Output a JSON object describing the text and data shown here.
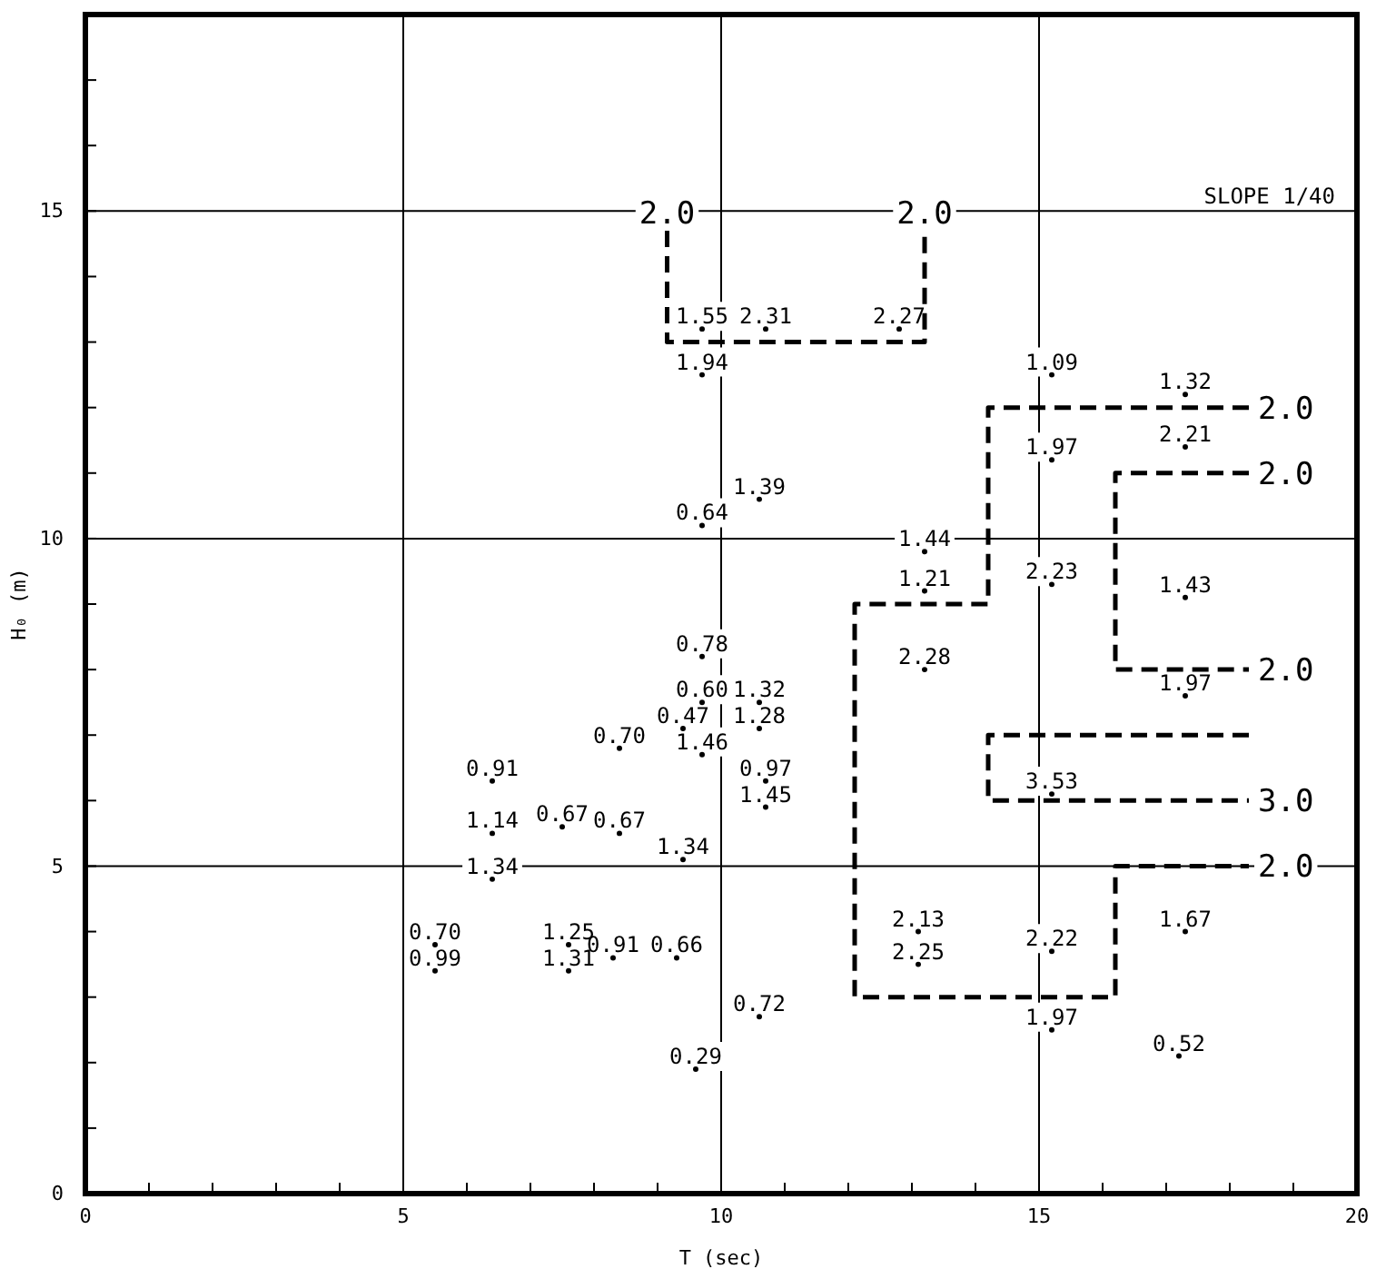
{
  "chart_data": {
    "type": "scatter",
    "xlabel": "T (sec)",
    "ylabel": "H₀ (m)",
    "xlim": [
      0,
      20
    ],
    "ylim": [
      0,
      18
    ],
    "xticks": [
      0,
      {
        "value": 1,
        "label": null
      },
      {
        "value": 2,
        "label": null
      },
      {
        "value": 3,
        "label": null
      },
      {
        "value": 4,
        "label": null
      },
      5,
      {
        "value": 6,
        "label": null
      },
      {
        "value": 7,
        "label": null
      },
      {
        "value": 8,
        "label": null
      },
      {
        "value": 9,
        "label": null
      },
      10,
      {
        "value": 11,
        "label": null
      },
      {
        "value": 12,
        "label": null
      },
      {
        "value": 13,
        "label": null
      },
      {
        "value": 14,
        "label": null
      },
      15,
      {
        "value": 16,
        "label": null
      },
      {
        "value": 17,
        "label": null
      },
      {
        "value": 18,
        "label": null
      },
      {
        "value": 19,
        "label": null
      },
      20
    ],
    "yticks": [
      0,
      {
        "value": 1,
        "label": null
      },
      {
        "value": 2,
        "label": null
      },
      {
        "value": 3,
        "label": null
      },
      {
        "value": 4,
        "label": null
      },
      5,
      {
        "value": 6,
        "label": null
      },
      {
        "value": 7,
        "label": null
      },
      {
        "value": 8,
        "label": null
      },
      {
        "value": 9,
        "label": null
      },
      10,
      {
        "value": 11,
        "label": null
      },
      {
        "value": 12,
        "label": null
      },
      {
        "value": 13,
        "label": null
      },
      {
        "value": 14,
        "label": null
      },
      15,
      {
        "value": 16,
        "label": null
      },
      {
        "value": 17,
        "label": null
      }
    ],
    "grid": true,
    "marker": "circle",
    "series": [
      {
        "color": "#000000",
        "x": [
          9.7,
          10.7,
          9.7,
          12.8,
          10.6,
          9.7,
          13.2,
          15.2,
          15.2,
          17.3,
          17.3,
          15.2,
          17.3,
          13.2,
          13.2,
          17.3,
          9.7,
          9.7,
          10.6,
          9.4,
          10.6,
          8.4,
          9.7,
          6.4,
          10.7,
          10.7,
          6.4,
          7.5,
          8.4,
          9.4,
          6.4,
          15.2,
          5.5,
          5.5,
          7.6,
          7.6,
          8.3,
          9.3,
          10.6,
          9.6,
          13.1,
          13.1,
          15.2,
          15.2,
          17.3,
          17.2
        ],
        "values": [
          13.2,
          13.2,
          12.5,
          13.2,
          10.6,
          10.2,
          9.8,
          12.5,
          11.2,
          12.2,
          11.4,
          9.3,
          9.1,
          9.2,
          8.0,
          7.6,
          8.2,
          7.5,
          7.5,
          7.1,
          7.1,
          6.8,
          6.7,
          6.3,
          6.3,
          5.9,
          5.5,
          5.6,
          5.5,
          5.1,
          4.8,
          6.1,
          3.8,
          3.4,
          3.8,
          3.4,
          3.6,
          3.6,
          2.7,
          1.9,
          4.0,
          3.5,
          3.7,
          2.5,
          4.0,
          2.1
        ]
      },
      {
        "type": "line",
        "color": "#000000",
        "line_style": "dashed",
        "marker": "none",
        "x": [
          9.15,
          9.15,
          13.2,
          13.2
        ],
        "values": [
          14.7,
          13.0,
          13.0,
          14.7
        ]
      },
      {
        "type": "line",
        "color": "#000000",
        "line_style": "dashed",
        "marker": "none",
        "x": [
          18.3,
          14.2,
          14.2,
          12.1,
          12.1,
          16.2,
          16.2,
          18.3
        ],
        "values": [
          12.0,
          12.0,
          9.0,
          9.0,
          3.0,
          3.0,
          5.0,
          5.0
        ]
      },
      {
        "type": "line",
        "color": "#000000",
        "line_style": "dashed",
        "marker": "none",
        "x": [
          18.3,
          16.2,
          16.2,
          18.3
        ],
        "values": [
          11.0,
          11.0,
          8.0,
          8.0
        ]
      },
      {
        "type": "line",
        "color": "#000000",
        "line_style": "dashed",
        "marker": "none",
        "x": [
          18.3,
          14.2,
          14.2,
          18.3
        ],
        "values": [
          7.0,
          7.0,
          6.0,
          6.0
        ]
      }
    ],
    "annotations": [
      "SLOPE 1/40",
      {
        "text": "1.55",
        "x": 9.7,
        "y": 13.2
      },
      {
        "text": "2.31",
        "x": 10.7,
        "y": 13.2
      },
      {
        "text": "1.94",
        "x": 9.7,
        "y": 12.5
      },
      {
        "text": "2.27",
        "x": 12.8,
        "y": 13.2
      },
      {
        "text": "1.39",
        "x": 10.6,
        "y": 10.6
      },
      {
        "text": "0.64",
        "x": 9.7,
        "y": 10.2
      },
      {
        "text": "1.44",
        "x": 13.2,
        "y": 9.8
      },
      {
        "text": "1.09",
        "x": 15.2,
        "y": 12.5
      },
      {
        "text": "1.97",
        "x": 15.2,
        "y": 11.2
      },
      {
        "text": "1.32",
        "x": 17.3,
        "y": 12.2
      },
      {
        "text": "2.21",
        "x": 17.3,
        "y": 11.4
      },
      {
        "text": "2.23",
        "x": 15.2,
        "y": 9.3
      },
      {
        "text": "1.43",
        "x": 17.3,
        "y": 9.1
      },
      {
        "text": "1.21",
        "x": 13.2,
        "y": 9.2
      },
      {
        "text": "2.28",
        "x": 13.2,
        "y": 8.0
      },
      {
        "text": "1.97",
        "x": 17.3,
        "y": 7.6
      },
      {
        "text": "0.78",
        "x": 9.7,
        "y": 8.2
      },
      {
        "text": "0.60",
        "x": 9.7,
        "y": 7.5
      },
      {
        "text": "1.32",
        "x": 10.6,
        "y": 7.5
      },
      {
        "text": "0.47",
        "x": 9.4,
        "y": 7.1
      },
      {
        "text": "1.28",
        "x": 10.6,
        "y": 7.1
      },
      {
        "text": "0.70",
        "x": 8.4,
        "y": 6.8
      },
      {
        "text": "1.46",
        "x": 9.7,
        "y": 6.7
      },
      {
        "text": "0.91",
        "x": 6.4,
        "y": 6.3
      },
      {
        "text": "0.97",
        "x": 10.7,
        "y": 6.3
      },
      {
        "text": "1.45",
        "x": 10.7,
        "y": 5.9
      },
      {
        "text": "1.14",
        "x": 6.4,
        "y": 5.5
      },
      {
        "text": "0.67",
        "x": 7.5,
        "y": 5.6
      },
      {
        "text": "0.67",
        "x": 8.4,
        "y": 5.5
      },
      {
        "text": "1.34",
        "x": 9.4,
        "y": 5.1
      },
      {
        "text": "1.34",
        "x": 6.4,
        "y": 4.8
      },
      {
        "text": "3.53",
        "x": 15.2,
        "y": 6.1
      },
      {
        "text": "0.70",
        "x": 5.5,
        "y": 3.8
      },
      {
        "text": "0.99",
        "x": 5.5,
        "y": 3.4
      },
      {
        "text": "1.25",
        "x": 7.6,
        "y": 3.8
      },
      {
        "text": "1.31",
        "x": 7.6,
        "y": 3.4
      },
      {
        "text": "0.91",
        "x": 8.3,
        "y": 3.6
      },
      {
        "text": "0.66",
        "x": 9.3,
        "y": 3.6
      },
      {
        "text": "0.72",
        "x": 10.6,
        "y": 2.7
      },
      {
        "text": "0.29",
        "x": 9.6,
        "y": 1.9
      },
      {
        "text": "2.13",
        "x": 13.1,
        "y": 4.0
      },
      {
        "text": "2.25",
        "x": 13.1,
        "y": 3.5
      },
      {
        "text": "2.22",
        "x": 15.2,
        "y": 3.7
      },
      {
        "text": "1.97",
        "x": 15.2,
        "y": 2.5
      },
      {
        "text": "1.67",
        "x": 17.3,
        "y": 4.0
      },
      {
        "text": "0.52",
        "x": 17.2,
        "y": 2.1
      },
      {
        "text": "2.0",
        "x": 9.15,
        "y": 14.7
      },
      {
        "text": "2.0",
        "x": 13.2,
        "y": 14.7
      },
      {
        "text": "2.0",
        "x": 18.3,
        "y": 12.0
      },
      {
        "text": "2.0",
        "x": 18.3,
        "y": 11.0
      },
      {
        "text": "2.0",
        "x": 18.3,
        "y": 8.0
      },
      {
        "text": "3.0",
        "x": 18.3,
        "y": 6.0
      },
      {
        "text": "2.0",
        "x": 18.3,
        "y": 5.0
      }
    ]
  }
}
